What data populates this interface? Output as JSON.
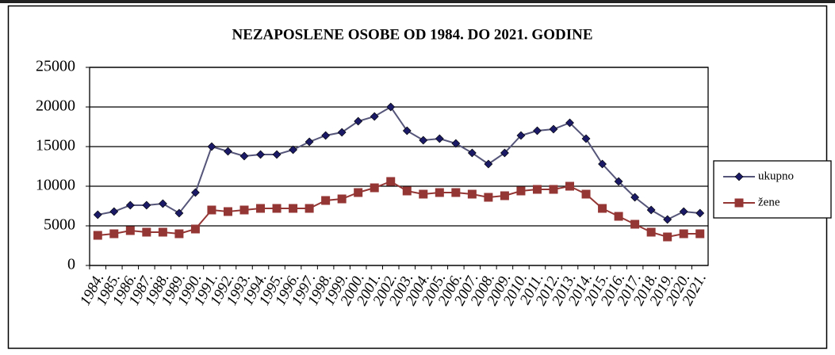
{
  "chart_data": {
    "type": "line",
    "title": "NEZAPOSLENE OSOBE OD 1984.  DO 2021.  GODINE",
    "categories": [
      "1984.",
      "1985.",
      "1986.",
      "1987.",
      "1988.",
      "1989.",
      "1990.",
      "1991.",
      "1992.",
      "1993.",
      "1994.",
      "1995.",
      "1996.",
      "1997.",
      "1998.",
      "1999.",
      "2000.",
      "2001.",
      "2002.",
      "2003.",
      "2004.",
      "2005.",
      "2006.",
      "2007.",
      "2008.",
      "2009.",
      "2010.",
      "2011.",
      "2012.",
      "2013.",
      "2014.",
      "2015.",
      "2016.",
      "2017.",
      "2018.",
      "2019.",
      "2020.",
      "2021."
    ],
    "series": [
      {
        "name": "ukupno",
        "color": "#1a1a66",
        "marker": "diamond",
        "values": [
          6400,
          6800,
          7600,
          7600,
          7800,
          6600,
          9200,
          15000,
          14400,
          13800,
          14000,
          14000,
          14600,
          15600,
          16400,
          16800,
          18200,
          18800,
          20000,
          17000,
          15800,
          16000,
          15400,
          14200,
          12800,
          14200,
          16400,
          17000,
          17200,
          18000,
          16000,
          12800,
          10600,
          8600,
          7000,
          5800,
          6800,
          6600
        ]
      },
      {
        "name": "žene",
        "color": "#943634",
        "marker": "square",
        "values": [
          3800,
          4000,
          4400,
          4200,
          4200,
          4000,
          4600,
          7000,
          6800,
          7000,
          7200,
          7200,
          7200,
          7200,
          8200,
          8400,
          9200,
          9800,
          10600,
          9400,
          9000,
          9200,
          9200,
          9000,
          8600,
          8800,
          9400,
          9600,
          9600,
          10000,
          9000,
          7200,
          6200,
          5200,
          4200,
          3600,
          4000,
          4000
        ]
      }
    ],
    "ylim": [
      0,
      25000
    ],
    "yticks": [
      0,
      5000,
      10000,
      15000,
      20000,
      25000
    ],
    "grid": true,
    "legend": "right"
  }
}
